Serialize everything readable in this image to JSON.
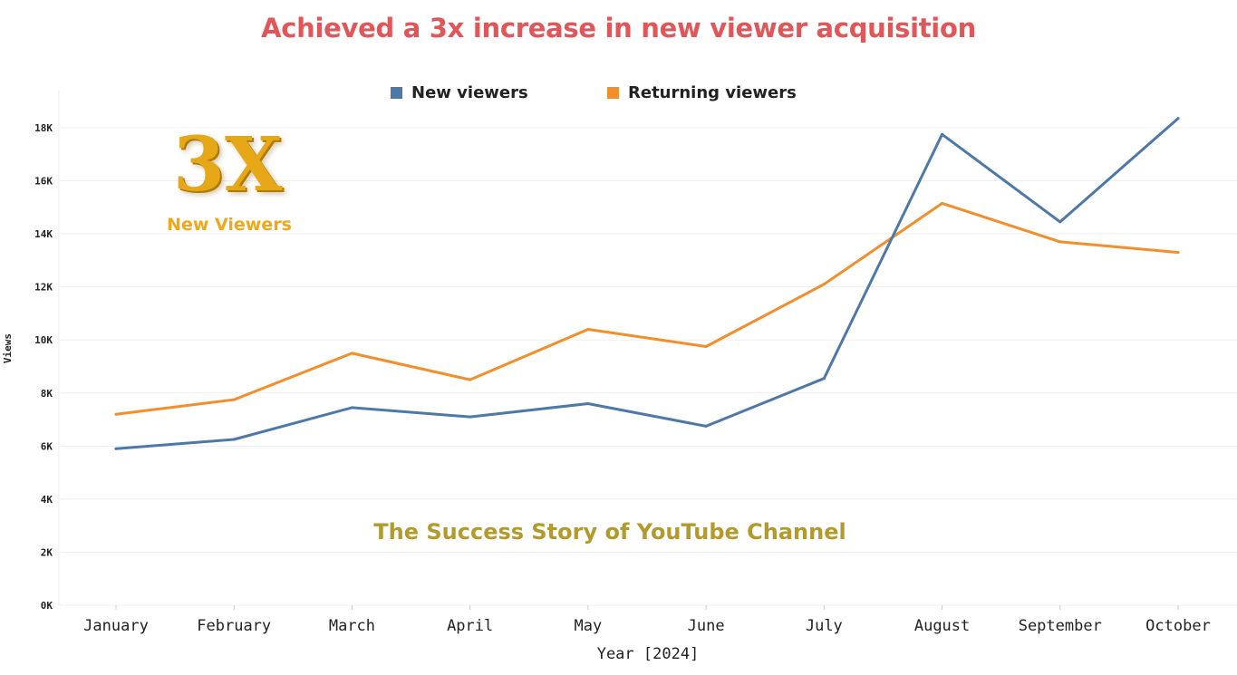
{
  "chart_data": {
    "type": "line",
    "title": "Achieved a 3x increase in new viewer acquisition",
    "subtitle": "The Success Story of YouTube Channel",
    "xlabel": "Year [2024]",
    "ylabel": "Views",
    "categories": [
      "January",
      "February",
      "March",
      "April",
      "May",
      "June",
      "July",
      "August",
      "September",
      "October"
    ],
    "series": [
      {
        "name": "New viewers",
        "color": "#4e79a7",
        "values": [
          5900,
          6250,
          7450,
          7100,
          7600,
          6750,
          8550,
          17750,
          14450,
          18350
        ]
      },
      {
        "name": "Returning viewers",
        "color": "#f28e2b",
        "values": [
          7200,
          7750,
          9500,
          8500,
          10400,
          9750,
          12100,
          15150,
          13700,
          13300
        ]
      }
    ],
    "ylim": [
      0,
      19400
    ],
    "yticks": [
      0,
      2000,
      4000,
      6000,
      8000,
      10000,
      12000,
      14000,
      16000,
      18000
    ],
    "ytick_labels": [
      "0K",
      "2K",
      "4K",
      "6K",
      "8K",
      "10K",
      "12K",
      "14K",
      "16K",
      "18K"
    ],
    "grid": true,
    "legend_position": "top-center"
  },
  "badge": {
    "number": "3X",
    "text": "New Viewers"
  }
}
